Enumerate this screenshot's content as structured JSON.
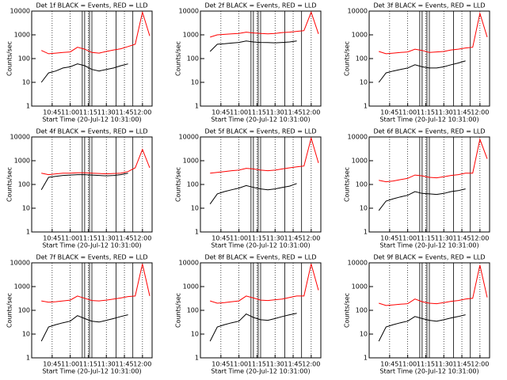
{
  "chart_data": [
    {
      "type": "line",
      "title": "Det 1f BLACK = Events, RED = LLD",
      "ylabel": "Counts/sec",
      "xlabel": "Start Time (20-Jul-12 10:31:00)",
      "log_y": true,
      "grid": true,
      "x": [
        "10:36",
        "10:42",
        "10:48",
        "10:54",
        "11:00",
        "11:06",
        "11:12",
        "11:18",
        "11:24",
        "11:30",
        "11:36",
        "11:42",
        "11:48",
        "11:54",
        "12:00",
        "12:06"
      ],
      "xlim": [
        "10:28",
        "12:08"
      ],
      "xticks": [
        "10:45",
        "11:00",
        "11:15",
        "11:30",
        "11:45",
        "12:00"
      ],
      "ylim": [
        1,
        10000
      ],
      "yticks": [
        1,
        10,
        100,
        1000,
        10000
      ],
      "vlines": [
        "11:10",
        "11:12",
        "11:16",
        "11:18",
        "11:38",
        "11:52"
      ],
      "series": [
        {
          "color": "#ff0000",
          "values": [
            220,
            160,
            170,
            180,
            190,
            300,
            250,
            180,
            170,
            200,
            230,
            260,
            320,
            400,
            9000,
            900
          ]
        },
        {
          "color": "#000000",
          "values": [
            10,
            25,
            30,
            40,
            45,
            60,
            50,
            35,
            30,
            35,
            40,
            50,
            60,
            null,
            null,
            null
          ]
        }
      ]
    },
    {
      "type": "line",
      "title": "Det 2f BLACK = Events, RED = LLD",
      "ylabel": "Counts/sec",
      "xlabel": "Start Time (20-Jul-12 10:31:00)",
      "log_y": true,
      "grid": true,
      "x": [
        "10:36",
        "10:42",
        "10:48",
        "10:54",
        "11:00",
        "11:06",
        "11:12",
        "11:18",
        "11:24",
        "11:30",
        "11:36",
        "11:42",
        "11:48",
        "11:54",
        "12:00",
        "12:06"
      ],
      "xlim": [
        "10:28",
        "12:08"
      ],
      "xticks": [
        "10:45",
        "11:00",
        "11:15",
        "11:30",
        "11:45",
        "12:00"
      ],
      "ylim": [
        1,
        10000
      ],
      "yticks": [
        1,
        10,
        100,
        1000,
        10000
      ],
      "vlines": [
        "11:10",
        "11:12",
        "11:16",
        "11:18",
        "11:38",
        "11:52"
      ],
      "series": [
        {
          "color": "#ff0000",
          "values": [
            800,
            1000,
            1050,
            1100,
            1150,
            1300,
            1200,
            1150,
            1100,
            1150,
            1250,
            1300,
            1400,
            1500,
            9000,
            1100
          ]
        },
        {
          "color": "#000000",
          "values": [
            200,
            400,
            420,
            450,
            480,
            550,
            500,
            480,
            470,
            460,
            480,
            500,
            550,
            null,
            null,
            null
          ]
        }
      ]
    },
    {
      "type": "line",
      "title": "Det 3f BLACK = Events, RED = LLD",
      "ylabel": "Counts/sec",
      "xlabel": "Start Time (20-Jul-12 10:31:00)",
      "log_y": true,
      "grid": true,
      "x": [
        "10:36",
        "10:42",
        "10:48",
        "10:54",
        "11:00",
        "11:06",
        "11:12",
        "11:18",
        "11:24",
        "11:30",
        "11:36",
        "11:42",
        "11:48",
        "11:54",
        "12:00",
        "12:06"
      ],
      "xlim": [
        "10:28",
        "12:08"
      ],
      "xticks": [
        "10:45",
        "11:00",
        "11:15",
        "11:30",
        "11:45",
        "12:00"
      ],
      "ylim": [
        1,
        10000
      ],
      "yticks": [
        1,
        10,
        100,
        1000,
        10000
      ],
      "vlines": [
        "11:10",
        "11:12",
        "11:16",
        "11:18",
        "11:38",
        "11:52"
      ],
      "series": [
        {
          "color": "#ff0000",
          "values": [
            200,
            160,
            170,
            180,
            190,
            250,
            220,
            180,
            190,
            200,
            230,
            250,
            280,
            300,
            8000,
            800
          ]
        },
        {
          "color": "#000000",
          "values": [
            10,
            25,
            30,
            35,
            40,
            55,
            45,
            40,
            40,
            45,
            55,
            65,
            80,
            null,
            null,
            null
          ]
        }
      ]
    },
    {
      "type": "line",
      "title": "Det 4f BLACK = Events, RED = LLD",
      "ylabel": "Counts/sec",
      "xlabel": "Start Time (20-Jul-12 10:31:00)",
      "log_y": true,
      "grid": true,
      "x": [
        "10:36",
        "10:42",
        "10:48",
        "10:54",
        "11:00",
        "11:06",
        "11:12",
        "11:18",
        "11:24",
        "11:30",
        "11:36",
        "11:42",
        "11:48",
        "11:54",
        "12:00",
        "12:06"
      ],
      "xlim": [
        "10:28",
        "12:08"
      ],
      "xticks": [
        "10:45",
        "11:00",
        "11:15",
        "11:30",
        "11:45",
        "12:00"
      ],
      "ylim": [
        1,
        10000
      ],
      "yticks": [
        1,
        10,
        100,
        1000,
        10000
      ],
      "vlines": [
        "11:10",
        "11:12",
        "11:16",
        "11:18",
        "11:38",
        "11:52"
      ],
      "series": [
        {
          "color": "#ff0000",
          "values": [
            300,
            260,
            280,
            300,
            300,
            310,
            310,
            300,
            290,
            280,
            290,
            300,
            350,
            500,
            3000,
            500
          ]
        },
        {
          "color": "#000000",
          "values": [
            60,
            200,
            220,
            240,
            250,
            260,
            260,
            250,
            240,
            230,
            240,
            260,
            300,
            null,
            null,
            null
          ]
        }
      ]
    },
    {
      "type": "line",
      "title": "Det 5f BLACK = Events, RED = LLD",
      "ylabel": "Counts/sec",
      "xlabel": "Start Time (20-Jul-12 10:31:00)",
      "log_y": true,
      "grid": true,
      "x": [
        "10:36",
        "10:42",
        "10:48",
        "10:54",
        "11:00",
        "11:06",
        "11:12",
        "11:18",
        "11:24",
        "11:30",
        "11:36",
        "11:42",
        "11:48",
        "11:54",
        "12:00",
        "12:06"
      ],
      "xlim": [
        "10:28",
        "12:08"
      ],
      "xticks": [
        "10:45",
        "11:00",
        "11:15",
        "11:30",
        "11:45",
        "12:00"
      ],
      "ylim": [
        1,
        10000
      ],
      "yticks": [
        1,
        10,
        100,
        1000,
        10000
      ],
      "vlines": [
        "11:10",
        "11:12",
        "11:16",
        "11:18",
        "11:38",
        "11:52"
      ],
      "series": [
        {
          "color": "#ff0000",
          "values": [
            300,
            320,
            350,
            380,
            400,
            480,
            450,
            400,
            380,
            400,
            450,
            500,
            550,
            600,
            9000,
            800
          ]
        },
        {
          "color": "#000000",
          "values": [
            15,
            40,
            50,
            60,
            70,
            90,
            75,
            65,
            60,
            65,
            75,
            85,
            110,
            null,
            null,
            null
          ]
        }
      ]
    },
    {
      "type": "line",
      "title": "Det 6f BLACK = Events, RED = LLD",
      "ylabel": "Counts/sec",
      "xlabel": "Start Time (20-Jul-12 10:31:00)",
      "log_y": true,
      "grid": true,
      "x": [
        "10:36",
        "10:42",
        "10:48",
        "10:54",
        "11:00",
        "11:06",
        "11:12",
        "11:18",
        "11:24",
        "11:30",
        "11:36",
        "11:42",
        "11:48",
        "11:54",
        "12:00",
        "12:06"
      ],
      "xlim": [
        "10:28",
        "12:08"
      ],
      "xticks": [
        "10:45",
        "11:00",
        "11:15",
        "11:30",
        "11:45",
        "12:00"
      ],
      "ylim": [
        1,
        10000
      ],
      "yticks": [
        1,
        10,
        100,
        1000,
        10000
      ],
      "vlines": [
        "11:10",
        "11:12",
        "11:16",
        "11:18",
        "11:38",
        "11:52"
      ],
      "series": [
        {
          "color": "#ff0000",
          "values": [
            150,
            130,
            140,
            160,
            180,
            250,
            230,
            200,
            190,
            210,
            240,
            260,
            300,
            300,
            8000,
            1200
          ]
        },
        {
          "color": "#000000",
          "values": [
            8,
            20,
            25,
            30,
            35,
            50,
            42,
            40,
            38,
            42,
            50,
            55,
            65,
            null,
            null,
            null
          ]
        }
      ]
    },
    {
      "type": "line",
      "title": "Det 7f BLACK = Events, RED = LLD",
      "ylabel": "Counts/sec",
      "xlabel": "Start Time (20-Jul-12 10:31:00)",
      "log_y": true,
      "grid": true,
      "x": [
        "10:36",
        "10:42",
        "10:48",
        "10:54",
        "11:00",
        "11:06",
        "11:12",
        "11:18",
        "11:24",
        "11:30",
        "11:36",
        "11:42",
        "11:48",
        "11:54",
        "12:00",
        "12:06"
      ],
      "xlim": [
        "10:28",
        "12:08"
      ],
      "xticks": [
        "10:45",
        "11:00",
        "11:15",
        "11:30",
        "11:45",
        "12:00"
      ],
      "ylim": [
        1,
        10000
      ],
      "yticks": [
        1,
        10,
        100,
        1000,
        10000
      ],
      "vlines": [
        "11:10",
        "11:12",
        "11:16",
        "11:18",
        "11:38",
        "11:52"
      ],
      "series": [
        {
          "color": "#ff0000",
          "values": [
            250,
            220,
            230,
            250,
            270,
            400,
            320,
            260,
            250,
            270,
            300,
            330,
            380,
            400,
            9000,
            400
          ]
        },
        {
          "color": "#000000",
          "values": [
            5,
            20,
            25,
            30,
            35,
            60,
            45,
            35,
            32,
            38,
            45,
            55,
            65,
            null,
            null,
            null
          ]
        }
      ]
    },
    {
      "type": "line",
      "title": "Det 8f BLACK = Events, RED = LLD",
      "ylabel": "Counts/sec",
      "xlabel": "Start Time (20-Jul-12 10:31:00)",
      "log_y": true,
      "grid": true,
      "x": [
        "10:36",
        "10:42",
        "10:48",
        "10:54",
        "11:00",
        "11:06",
        "11:12",
        "11:18",
        "11:24",
        "11:30",
        "11:36",
        "11:42",
        "11:48",
        "11:54",
        "12:00",
        "12:06"
      ],
      "xlim": [
        "10:28",
        "12:08"
      ],
      "xticks": [
        "10:45",
        "11:00",
        "11:15",
        "11:30",
        "11:45",
        "12:00"
      ],
      "ylim": [
        1,
        10000
      ],
      "yticks": [
        1,
        10,
        100,
        1000,
        10000
      ],
      "vlines": [
        "11:10",
        "11:12",
        "11:16",
        "11:18",
        "11:38",
        "11:52"
      ],
      "series": [
        {
          "color": "#ff0000",
          "values": [
            250,
            200,
            210,
            230,
            250,
            400,
            330,
            270,
            260,
            280,
            300,
            350,
            400,
            400,
            9000,
            700
          ]
        },
        {
          "color": "#000000",
          "values": [
            5,
            20,
            25,
            30,
            35,
            70,
            50,
            40,
            38,
            45,
            55,
            65,
            75,
            null,
            null,
            null
          ]
        }
      ]
    },
    {
      "type": "line",
      "title": "Det 9f BLACK = Events, RED = LLD",
      "ylabel": "Counts/sec",
      "xlabel": "Start Time (20-Jul-12 10:31:00)",
      "log_y": true,
      "grid": true,
      "x": [
        "10:36",
        "10:42",
        "10:48",
        "10:54",
        "11:00",
        "11:06",
        "11:12",
        "11:18",
        "11:24",
        "11:30",
        "11:36",
        "11:42",
        "11:48",
        "11:54",
        "12:00",
        "12:06"
      ],
      "xlim": [
        "10:28",
        "12:08"
      ],
      "xticks": [
        "10:45",
        "11:00",
        "11:15",
        "11:30",
        "11:45",
        "12:00"
      ],
      "ylim": [
        1,
        10000
      ],
      "yticks": [
        1,
        10,
        100,
        1000,
        10000
      ],
      "vlines": [
        "11:10",
        "11:12",
        "11:16",
        "11:18",
        "11:38",
        "11:52"
      ],
      "series": [
        {
          "color": "#ff0000",
          "values": [
            200,
            160,
            170,
            180,
            190,
            300,
            230,
            200,
            190,
            210,
            240,
            260,
            300,
            320,
            8000,
            350
          ]
        },
        {
          "color": "#000000",
          "values": [
            5,
            20,
            25,
            30,
            35,
            55,
            45,
            38,
            35,
            40,
            48,
            55,
            65,
            null,
            null,
            null
          ]
        }
      ]
    }
  ]
}
